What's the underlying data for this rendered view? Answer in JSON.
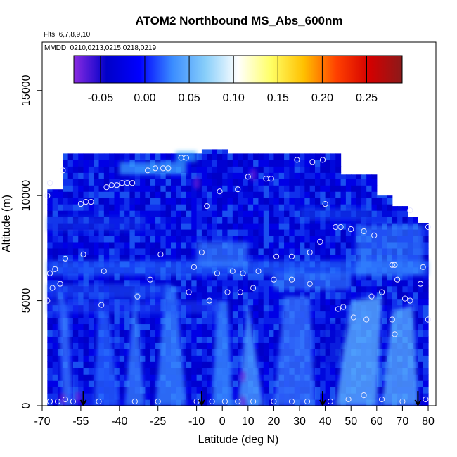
{
  "chart_data": {
    "type": "heatmap",
    "title": "ATOM2 Northbound MS_Abs_600nm",
    "subtitle_flights": "Flts: 6,7,8,9,10",
    "subtitle_dates": "MMDD: 0210,0213,0215,0218,0219",
    "xlabel": "Latitude (deg N)",
    "ylabel": "Altitude (m)",
    "xlim": [
      -70,
      83
    ],
    "ylim": [
      0,
      17300
    ],
    "x_ticks": [
      -70,
      -55,
      -40,
      -25,
      -10,
      0,
      10,
      20,
      30,
      40,
      50,
      60,
      70,
      80
    ],
    "x_tick_labels": [
      "-70",
      "-55",
      "-40",
      "-25",
      "-10",
      "0",
      "10",
      "20",
      "30",
      "40",
      "50",
      "60",
      "70",
      "80"
    ],
    "y_ticks": [
      0,
      5000,
      10000,
      15000
    ],
    "y_tick_labels": [
      "0",
      "5000",
      "10000",
      "15000"
    ],
    "colorbar": {
      "ticks": [
        -0.05,
        0.0,
        0.05,
        0.1,
        0.15,
        0.2,
        0.25
      ],
      "tick_labels": [
        "-0.05",
        "0.00",
        "0.05",
        "0.10",
        "0.15",
        "0.20",
        "0.25"
      ],
      "range": [
        -0.08,
        0.29
      ],
      "colors": [
        "#8a2be2",
        "#0000c8",
        "#0000ff",
        "#3a8cff",
        "#87cefa",
        "#ffffff",
        "#ffff66",
        "#ffc000",
        "#ff4000",
        "#d40000",
        "#8b1a1a"
      ]
    },
    "arrows_lat": [
      -54,
      -8,
      39,
      76
    ],
    "top_profile": [
      {
        "lat": -68,
        "alt": 10300
      },
      {
        "lat": -64,
        "alt": 12000
      },
      {
        "lat": -55,
        "alt": 12000
      },
      {
        "lat": -40,
        "alt": 12000
      },
      {
        "lat": -25,
        "alt": 12000
      },
      {
        "lat": -10,
        "alt": 12200
      },
      {
        "lat": 0,
        "alt": 12000
      },
      {
        "lat": 10,
        "alt": 12000
      },
      {
        "lat": 25,
        "alt": 12000
      },
      {
        "lat": 38,
        "alt": 12000
      },
      {
        "lat": 45,
        "alt": 11000
      },
      {
        "lat": 58,
        "alt": 10000
      },
      {
        "lat": 64,
        "alt": 9500
      },
      {
        "lat": 70,
        "alt": 9000
      },
      {
        "lat": 75,
        "alt": 8700
      },
      {
        "lat": 80,
        "alt": 8600
      }
    ],
    "sample_points": [
      [
        -67,
        200
      ],
      [
        -64,
        200
      ],
      [
        -61,
        300
      ],
      [
        -58,
        200
      ],
      [
        -48,
        200
      ],
      [
        -34,
        200
      ],
      [
        -25,
        200
      ],
      [
        -10,
        200
      ],
      [
        -4,
        200
      ],
      [
        1,
        200
      ],
      [
        6,
        200
      ],
      [
        12,
        200
      ],
      [
        20,
        200
      ],
      [
        27,
        200
      ],
      [
        33,
        200
      ],
      [
        42,
        200
      ],
      [
        49,
        300
      ],
      [
        55,
        500
      ],
      [
        62,
        300
      ],
      [
        70,
        200
      ],
      [
        79,
        300
      ],
      [
        -68,
        5000
      ],
      [
        -66,
        5600
      ],
      [
        -63,
        5800
      ],
      [
        -47,
        4800
      ],
      [
        -33,
        5200
      ],
      [
        -28,
        6000
      ],
      [
        -13,
        5400
      ],
      [
        -5,
        5000
      ],
      [
        2,
        5400
      ],
      [
        7,
        5400
      ],
      [
        12,
        5600
      ],
      [
        20,
        6000
      ],
      [
        27,
        6000
      ],
      [
        34,
        5800
      ],
      [
        45,
        4600
      ],
      [
        47,
        4700
      ],
      [
        51,
        4200
      ],
      [
        56,
        4100
      ],
      [
        58,
        5200
      ],
      [
        62,
        5400
      ],
      [
        66,
        4100
      ],
      [
        67,
        3400
      ],
      [
        71,
        5100
      ],
      [
        73,
        5000
      ],
      [
        77,
        5800
      ],
      [
        80,
        4100
      ],
      [
        -67,
        6300
      ],
      [
        -65,
        6500
      ],
      [
        -61,
        7000
      ],
      [
        -54,
        7200
      ],
      [
        -46,
        6400
      ],
      [
        -24,
        7200
      ],
      [
        -11,
        6600
      ],
      [
        -8,
        7300
      ],
      [
        -2,
        6300
      ],
      [
        4,
        6400
      ],
      [
        8,
        6300
      ],
      [
        14,
        6400
      ],
      [
        21,
        7100
      ],
      [
        27,
        7100
      ],
      [
        34,
        7300
      ],
      [
        38,
        7800
      ],
      [
        44,
        8500
      ],
      [
        46,
        8500
      ],
      [
        50,
        8400
      ],
      [
        55,
        8300
      ],
      [
        59,
        8100
      ],
      [
        66,
        6700
      ],
      [
        67,
        6700
      ],
      [
        68,
        6000
      ],
      [
        78,
        6600
      ],
      [
        80,
        8500
      ],
      [
        -68,
        10000
      ],
      [
        -67,
        10600
      ],
      [
        -62,
        11200
      ],
      [
        -55,
        9600
      ],
      [
        -53,
        9700
      ],
      [
        -51,
        9700
      ],
      [
        -45,
        10400
      ],
      [
        -43,
        10500
      ],
      [
        -41,
        10500
      ],
      [
        -39,
        10600
      ],
      [
        -37,
        10600
      ],
      [
        -35,
        10600
      ],
      [
        -29,
        11200
      ],
      [
        -26,
        11300
      ],
      [
        -23,
        11300
      ],
      [
        -21,
        11300
      ],
      [
        -16,
        11800
      ],
      [
        -14,
        11800
      ],
      [
        -6,
        9500
      ],
      [
        -1,
        10200
      ],
      [
        6,
        10300
      ],
      [
        10,
        10900
      ],
      [
        17,
        10800
      ],
      [
        19,
        10800
      ],
      [
        29,
        11700
      ],
      [
        35,
        11600
      ],
      [
        39,
        11700
      ],
      [
        40,
        9600
      ],
      [
        73,
        9300
      ]
    ]
  }
}
